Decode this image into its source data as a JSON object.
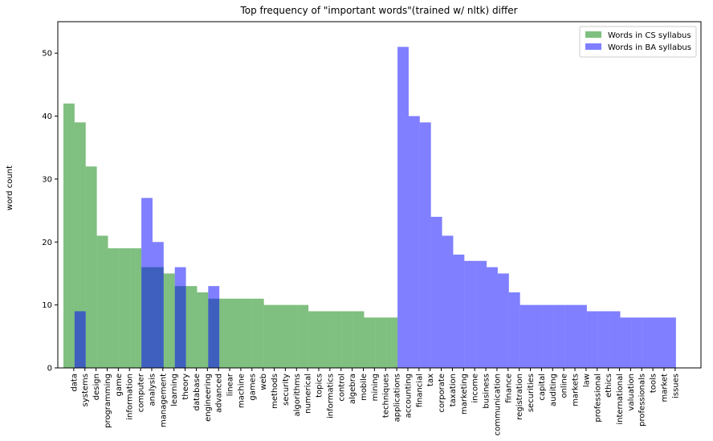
{
  "chart_data": {
    "type": "bar",
    "title": "Top frequency of \"important words\"(trained w/ nltk) differ",
    "ylabel": "word count",
    "categories": [
      "data",
      "systems",
      "design",
      "programming",
      "game",
      "information",
      "computer",
      "analysis",
      "management",
      "learning",
      "theory",
      "database",
      "engineering",
      "advanced",
      "linear",
      "machine",
      "games",
      "web",
      "methods",
      "security",
      "algorithms",
      "numerical",
      "topics",
      "informatics",
      "control",
      "algebra",
      "mobile",
      "mining",
      "techniques",
      "applications",
      "accounting",
      "financial",
      "tax",
      "corporate",
      "taxation",
      "marketing",
      "income",
      "business",
      "communication",
      "finance",
      "registration",
      "securities",
      "capital",
      "auditing",
      "online",
      "markets",
      "law",
      "professional",
      "ethics",
      "international",
      "valuation",
      "professionals",
      "tools",
      "market",
      "issues"
    ],
    "series": [
      {
        "name": "Words in CS syllabus",
        "color": "#008000",
        "opacity": 0.5,
        "values": [
          42,
          39,
          32,
          21,
          19,
          19,
          19,
          16,
          16,
          15,
          13,
          13,
          12,
          11,
          11,
          11,
          11,
          11,
          10,
          10,
          10,
          10,
          9,
          9,
          9,
          9,
          9,
          8,
          8,
          8,
          null,
          null,
          null,
          null,
          null,
          null,
          null,
          null,
          null,
          null,
          null,
          null,
          null,
          null,
          null,
          null,
          null,
          null,
          null,
          null,
          null,
          null,
          null,
          null,
          null
        ]
      },
      {
        "name": "Words in BA syllabus",
        "color": "#0000ff",
        "opacity": 0.5,
        "values": [
          null,
          9,
          null,
          null,
          null,
          null,
          null,
          27,
          20,
          null,
          16,
          null,
          null,
          13,
          null,
          null,
          null,
          null,
          null,
          null,
          null,
          null,
          null,
          null,
          null,
          null,
          null,
          null,
          null,
          null,
          51,
          40,
          39,
          24,
          21,
          18,
          17,
          17,
          16,
          15,
          12,
          10,
          10,
          10,
          10,
          10,
          10,
          9,
          9,
          9,
          8,
          8,
          8,
          8,
          8
        ]
      }
    ],
    "ylim": [
      0,
      55
    ],
    "yticks": [
      0,
      10,
      20,
      30,
      40,
      50
    ],
    "legend": "upper right"
  }
}
